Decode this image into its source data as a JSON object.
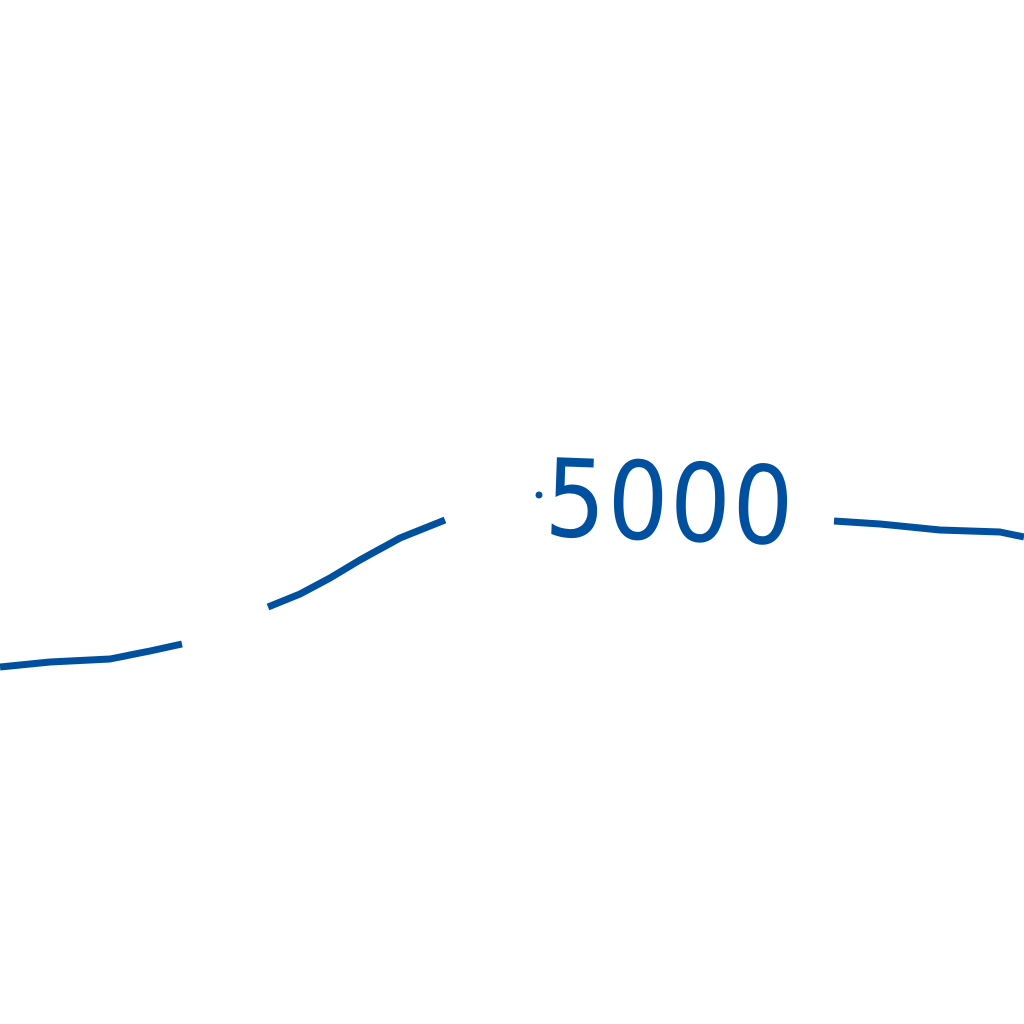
{
  "contour": {
    "elevation_label": "5000",
    "line_color": "#0050a0"
  }
}
